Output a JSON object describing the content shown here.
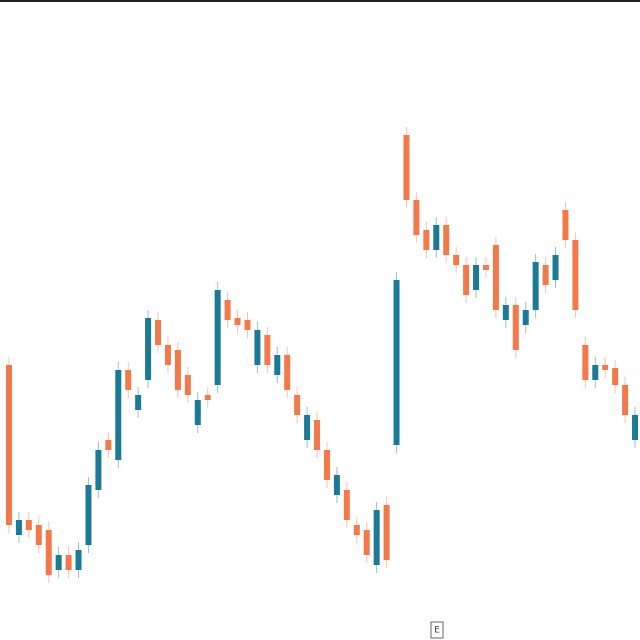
{
  "chart_data": {
    "type": "candlestick",
    "open": [
      275,
      105,
      120,
      115,
      110,
      70,
      85,
      70,
      95,
      150,
      200,
      180,
      270,
      230,
      260,
      320,
      295,
      290,
      265,
      215,
      245,
      255,
      340,
      322,
      320,
      275,
      305,
      265,
      285,
      245,
      200,
      220,
      190,
      145,
      150,
      115,
      110,
      75,
      135,
      195,
      505,
      440,
      410,
      390,
      415,
      385,
      375,
      350,
      375,
      395,
      320,
      335,
      315,
      330,
      375,
      360,
      430,
      400,
      295,
      260,
      275,
      272,
      255,
      200
    ],
    "high": [
      283,
      128,
      128,
      123,
      118,
      93,
      93,
      98,
      163,
      198,
      208,
      278,
      278,
      253,
      330,
      328,
      303,
      298,
      273,
      248,
      253,
      358,
      348,
      330,
      328,
      318,
      313,
      293,
      293,
      253,
      233,
      228,
      198,
      173,
      158,
      123,
      118,
      138,
      143,
      368,
      513,
      448,
      418,
      423,
      423,
      393,
      383,
      383,
      383,
      403,
      343,
      343,
      338,
      386,
      383,
      393,
      438,
      408,
      303,
      283,
      283,
      280,
      263,
      233
    ],
    "low": [
      107,
      97,
      102,
      87,
      57,
      62,
      62,
      62,
      87,
      142,
      182,
      172,
      242,
      222,
      252,
      287,
      267,
      242,
      237,
      207,
      232,
      247,
      312,
      307,
      302,
      267,
      267,
      257,
      242,
      217,
      192,
      182,
      152,
      137,
      112,
      97,
      77,
      67,
      72,
      187,
      432,
      397,
      382,
      382,
      377,
      367,
      337,
      342,
      362,
      322,
      312,
      282,
      307,
      322,
      347,
      352,
      392,
      322,
      252,
      252,
      262,
      247,
      217,
      192
    ],
    "close": [
      115,
      120,
      110,
      95,
      65,
      85,
      70,
      90,
      155,
      190,
      190,
      270,
      250,
      245,
      322,
      295,
      275,
      250,
      245,
      240,
      240,
      350,
      320,
      315,
      310,
      310,
      275,
      285,
      250,
      225,
      225,
      190,
      160,
      165,
      120,
      105,
      85,
      130,
      80,
      360,
      440,
      405,
      390,
      415,
      385,
      375,
      345,
      375,
      370,
      330,
      335,
      290,
      330,
      378,
      355,
      385,
      400,
      330,
      260,
      275,
      270,
      255,
      225,
      225
    ],
    "up_color": "#1b7a96",
    "down_color": "#f4794a",
    "ylim": [
      0,
      640
    ],
    "marker_label": "E"
  }
}
